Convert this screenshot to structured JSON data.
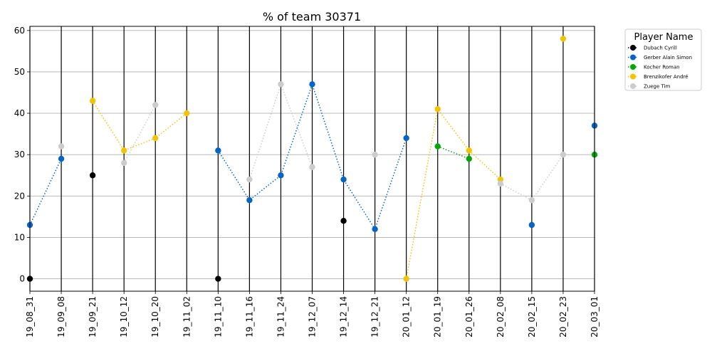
{
  "chart_data": {
    "type": "line",
    "title": "% of team 30371",
    "xlabel": "",
    "ylabel": "",
    "categories": [
      "19_08_31",
      "19_09_08",
      "19_09_21",
      "19_10_12",
      "19_10_20",
      "19_11_02",
      "19_11_10",
      "19_11_16",
      "19_11_24",
      "19_12_07",
      "19_12_14",
      "19_12_21",
      "20_01_12",
      "20_01_19",
      "20_01_26",
      "20_02_08",
      "20_02_15",
      "20_02_23",
      "20_03_01"
    ],
    "ylim": [
      -3,
      61
    ],
    "yticks": [
      0,
      10,
      20,
      30,
      40,
      50,
      60
    ],
    "grid": "horizontal",
    "legend": {
      "title": "Player Name",
      "placement": "outside-right"
    },
    "series": [
      {
        "name": "Dubach Cyrill",
        "color": "#000000",
        "values": [
          0,
          null,
          25,
          null,
          null,
          null,
          0,
          null,
          null,
          null,
          14,
          null,
          null,
          null,
          null,
          null,
          null,
          null,
          null
        ]
      },
      {
        "name": "Gerber Alain Simon",
        "color": "#0066cc",
        "values": [
          13,
          29,
          null,
          null,
          null,
          null,
          31,
          19,
          25,
          47,
          24,
          12,
          34,
          null,
          null,
          null,
          13,
          null,
          37
        ]
      },
      {
        "name": "Kocher Roman",
        "color": "#00aa00",
        "values": [
          null,
          null,
          null,
          null,
          null,
          null,
          null,
          null,
          null,
          null,
          null,
          null,
          null,
          32,
          29,
          null,
          null,
          null,
          30
        ]
      },
      {
        "name": "Brenzikofer André",
        "color": "#f5c400",
        "values": [
          null,
          null,
          43,
          31,
          34,
          40,
          null,
          null,
          null,
          null,
          null,
          null,
          0,
          41,
          31,
          24,
          null,
          58,
          null
        ]
      },
      {
        "name": "Zuege Tim",
        "color": "#cccccc",
        "values": [
          null,
          32,
          null,
          28,
          42,
          null,
          null,
          24,
          47,
          27,
          null,
          30,
          null,
          null,
          null,
          23,
          19,
          30,
          null
        ]
      }
    ]
  }
}
